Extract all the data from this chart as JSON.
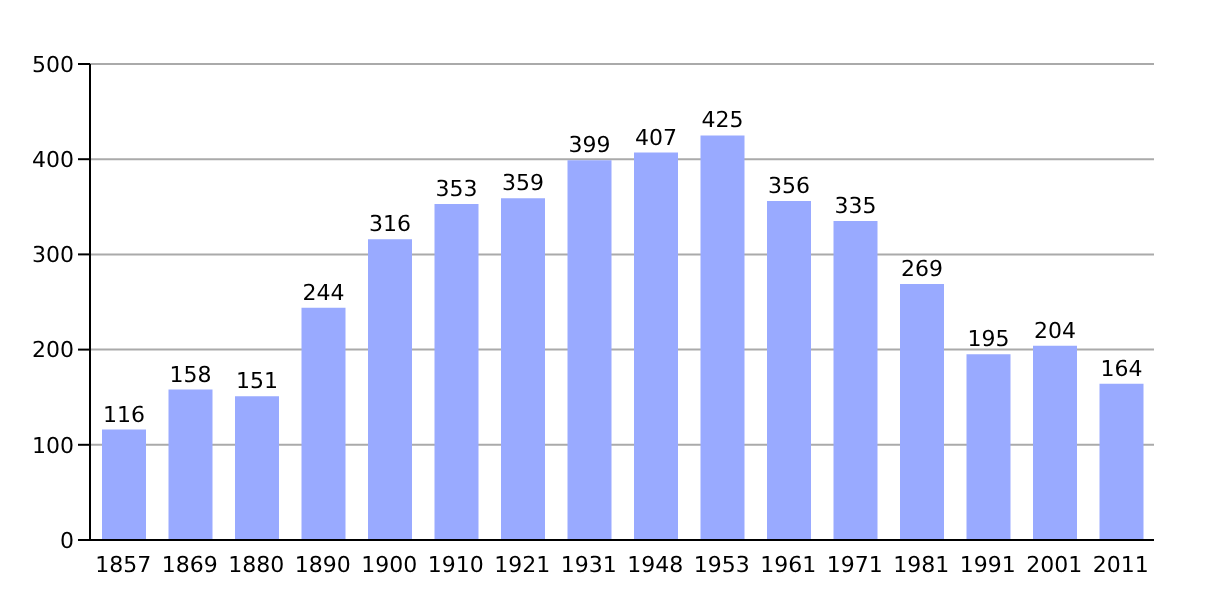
{
  "chart_data": {
    "type": "bar",
    "categories": [
      "1857",
      "1869",
      "1880",
      "1890",
      "1900",
      "1910",
      "1921",
      "1931",
      "1948",
      "1953",
      "1961",
      "1971",
      "1981",
      "1991",
      "2001",
      "2011"
    ],
    "values": [
      116,
      158,
      151,
      244,
      316,
      353,
      359,
      399,
      407,
      425,
      356,
      335,
      269,
      195,
      204,
      164
    ],
    "color": "#99aaff",
    "ylim": [
      0,
      500
    ],
    "yticks": [
      0,
      100,
      200,
      300,
      400,
      500
    ],
    "grid": "y",
    "data_labels": true
  }
}
